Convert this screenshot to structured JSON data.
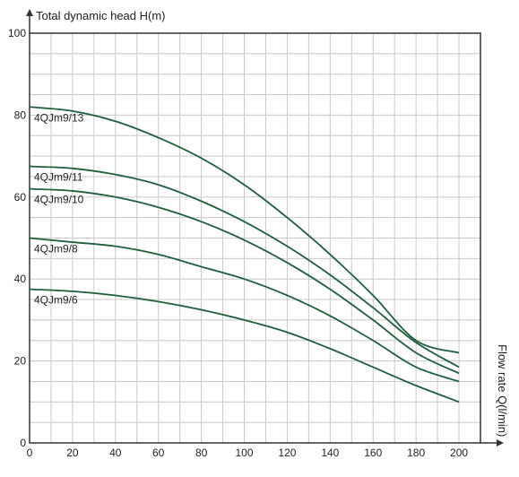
{
  "chart_data": {
    "type": "line",
    "title": "",
    "ylabel": "Total dynamic head H(m)",
    "xlabel": "Flow rate Q(l/min)",
    "xlim": [
      0,
      200
    ],
    "ylim": [
      0,
      100
    ],
    "xticks": [
      0,
      20,
      40,
      60,
      80,
      100,
      120,
      140,
      160,
      180,
      200
    ],
    "yticks": [
      0,
      20,
      40,
      60,
      80,
      100
    ],
    "grid": true,
    "line_color": "#1e5e3a",
    "grid_color": "#c8c8c8",
    "series": [
      {
        "name": "4QJm9/13",
        "x": [
          0,
          20,
          40,
          60,
          80,
          100,
          120,
          140,
          160,
          180,
          200
        ],
        "y": [
          82,
          81,
          78.5,
          74.5,
          69.5,
          63,
          55,
          46,
          36,
          25,
          22
        ]
      },
      {
        "name": "4QJm9/11",
        "x": [
          0,
          20,
          40,
          60,
          80,
          100,
          120,
          140,
          160,
          180,
          200
        ],
        "y": [
          67.5,
          67,
          65.5,
          63,
          59,
          54,
          48,
          41,
          33,
          24.5,
          18.5
        ]
      },
      {
        "name": "4QJm9/10",
        "x": [
          0,
          20,
          40,
          60,
          80,
          100,
          120,
          140,
          160,
          180,
          200
        ],
        "y": [
          62,
          61.5,
          60,
          57.5,
          54,
          49.5,
          44,
          37.5,
          30,
          22,
          17
        ]
      },
      {
        "name": "4QJm9/8",
        "x": [
          0,
          20,
          40,
          60,
          80,
          100,
          120,
          140,
          160,
          180,
          200
        ],
        "y": [
          50,
          49,
          48,
          46,
          43,
          40,
          36,
          31,
          25,
          18.5,
          15
        ]
      },
      {
        "name": "4QJm9/6",
        "x": [
          0,
          20,
          40,
          60,
          80,
          100,
          120,
          140,
          160,
          180,
          200
        ],
        "y": [
          37.5,
          37,
          36,
          34.5,
          32.5,
          30,
          27,
          23,
          18.5,
          14,
          10
        ]
      }
    ]
  }
}
